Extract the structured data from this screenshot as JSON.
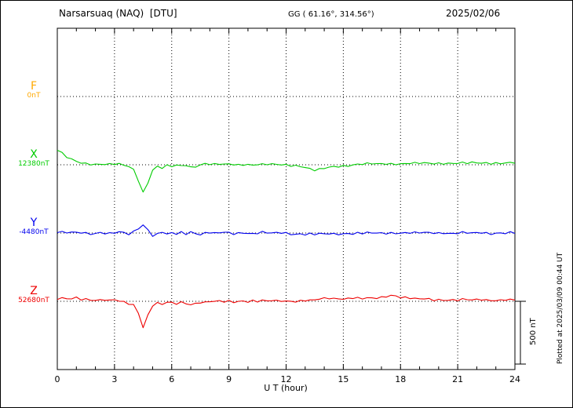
{
  "header": {
    "station": "Narsarsuaq (NAQ)  [DTU]",
    "coords": "GG ( 61.16°, 314.56°)",
    "date": "2025/02/06"
  },
  "plotted_note": "Plotted at 2025/03/09 00:44 UT",
  "chart_data": {
    "type": "line",
    "title": "Narsarsuaq (NAQ) [DTU] magnetogram 2025/02/06",
    "xlabel": "U T (hour)",
    "xlim": [
      0,
      24
    ],
    "xticks": [
      0,
      3,
      6,
      9,
      12,
      15,
      18,
      21,
      24
    ],
    "minor_tick_step_hours": 1,
    "grid": "dotted vertical lines every 3 hours; dotted horizontal line at each component baseline",
    "legend_position": "left margin, one colored label per trace",
    "scale_bar": {
      "label": "500 nT",
      "nT": 500
    },
    "series": [
      {
        "name": "F",
        "baseline_label": "0nT",
        "baseline_value_nT": 0,
        "color": "#ffa800",
        "x": {
          "start": 0,
          "step_hours": 0.25
        },
        "y": []
      },
      {
        "name": "X",
        "baseline_label": "12380nT",
        "baseline_value_nT": 12380,
        "color": "#00cc00",
        "x": {
          "start": 0,
          "step_hours": 0.25
        },
        "y": [
          120,
          90,
          60,
          40,
          25,
          15,
          10,
          8,
          5,
          8,
          5,
          3,
          5,
          2,
          -5,
          -15,
          -40,
          -120,
          -220,
          -140,
          -40,
          -15,
          -25,
          -10,
          -15,
          -5,
          -10,
          0,
          -20,
          -10,
          0,
          10,
          5,
          0,
          5,
          0,
          5,
          3,
          0,
          5,
          3,
          0,
          3,
          0,
          3,
          0,
          2,
          0,
          0,
          -3,
          -5,
          -10,
          -20,
          -35,
          -45,
          -40,
          -30,
          -20,
          -15,
          -10,
          -8,
          -5,
          0,
          3,
          5,
          5,
          8,
          5,
          8,
          10,
          8,
          10,
          8,
          10,
          12,
          10,
          12,
          10,
          12,
          10,
          12,
          14,
          12,
          14,
          12,
          14,
          12,
          14,
          15,
          13,
          15,
          14,
          15,
          14,
          15,
          15,
          15
        ]
      },
      {
        "name": "Y",
        "baseline_label": "-4480nT",
        "baseline_value_nT": -4480,
        "color": "#0000ee",
        "x": {
          "start": 0,
          "step_hours": 0.25
        },
        "y": [
          10,
          5,
          0,
          5,
          0,
          5,
          0,
          -5,
          0,
          5,
          0,
          -5,
          0,
          5,
          0,
          -10,
          10,
          40,
          65,
          30,
          -20,
          -10,
          10,
          -15,
          0,
          -10,
          5,
          -5,
          10,
          0,
          -10,
          0,
          5,
          -5,
          0,
          5,
          0,
          -5,
          0,
          5,
          0,
          -5,
          0,
          5,
          0,
          -3,
          0,
          3,
          0,
          -5,
          -8,
          -5,
          -10,
          -8,
          -12,
          -8,
          -10,
          -5,
          -8,
          -5,
          -5,
          0,
          -5,
          0,
          -3,
          0,
          -3,
          0,
          -3,
          0,
          3,
          0,
          3,
          0,
          3,
          0,
          0,
          3,
          0,
          3,
          0,
          3,
          0,
          -3,
          0,
          3,
          0,
          -3,
          0,
          3,
          0,
          -3,
          0,
          3,
          0,
          3,
          0
        ]
      },
      {
        "name": "Z",
        "baseline_label": "52680nT",
        "baseline_value_nT": 52680,
        "color": "#ee0000",
        "x": {
          "start": 0,
          "step_hours": 0.25
        },
        "y": [
          20,
          25,
          15,
          20,
          25,
          15,
          20,
          10,
          15,
          10,
          15,
          5,
          10,
          0,
          -10,
          -20,
          -30,
          -90,
          -205,
          -110,
          -30,
          -15,
          -25,
          -10,
          -15,
          -20,
          -10,
          -15,
          -25,
          -15,
          -5,
          -10,
          0,
          -5,
          0,
          -5,
          0,
          -5,
          0,
          5,
          0,
          5,
          0,
          5,
          0,
          5,
          0,
          5,
          0,
          5,
          0,
          5,
          10,
          5,
          10,
          15,
          20,
          25,
          20,
          25,
          20,
          25,
          30,
          25,
          20,
          25,
          20,
          25,
          30,
          40,
          50,
          45,
          35,
          30,
          25,
          20,
          15,
          20,
          15,
          10,
          15,
          10,
          15,
          10,
          10,
          15,
          10,
          10,
          10,
          15,
          10,
          10,
          10,
          10,
          15,
          10,
          10
        ]
      }
    ]
  }
}
